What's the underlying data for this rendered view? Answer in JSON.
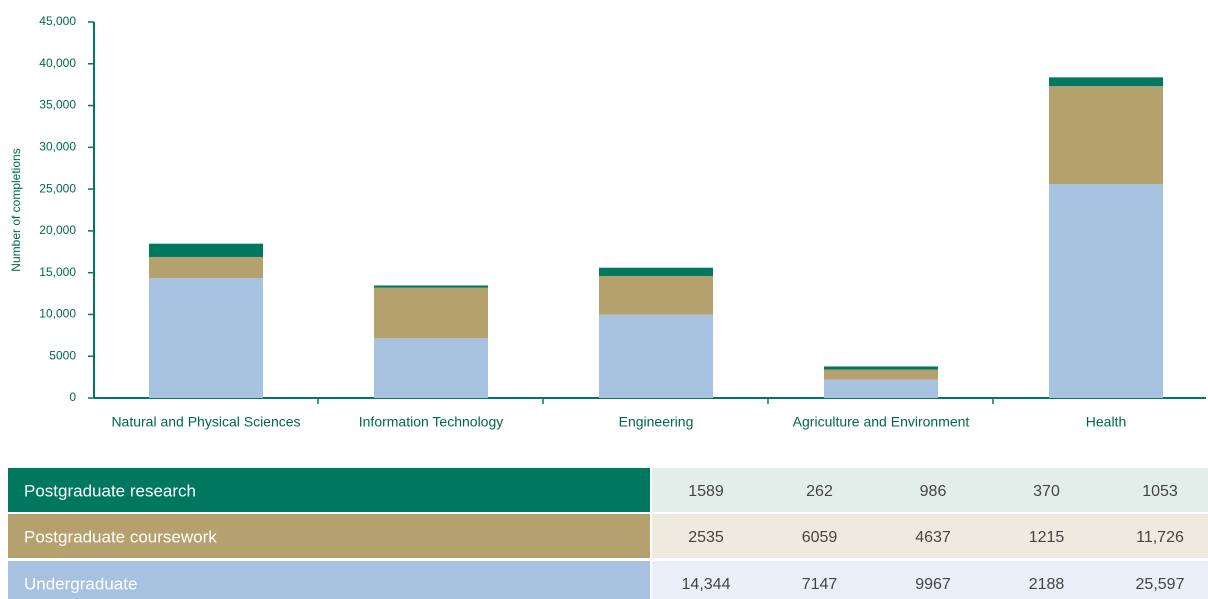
{
  "chart_data": {
    "type": "stacked-bar",
    "y_label": "Number of completions",
    "categories": [
      "Natural and Physical Sciences",
      "Information Technology",
      "Engineering",
      "Agriculture and Environment",
      "Health"
    ],
    "series": [
      {
        "name": "Undergraduate",
        "color": "#a7c1e1",
        "values": [
          14344,
          7147,
          9967,
          2188,
          25597
        ],
        "value_labels": [
          "14,344",
          "7147",
          "9967",
          "2188",
          "25,597"
        ]
      },
      {
        "name": "Postgraduate coursework",
        "color": "#b5a16d",
        "values": [
          2535,
          6059,
          4637,
          1215,
          11726
        ],
        "value_labels": [
          "2535",
          "6059",
          "4637",
          "1215",
          "11,726"
        ]
      },
      {
        "name": "Postgraduate research",
        "color": "#00785f",
        "values": [
          1589,
          262,
          986,
          370,
          1053
        ],
        "value_labels": [
          "1589",
          "262",
          "986",
          "370",
          "1053"
        ]
      }
    ],
    "ylim": [
      0,
      45000
    ],
    "yticks": [
      0,
      5000,
      {
        "value": 10000,
        "label": "10,000"
      },
      {
        "value": 15000,
        "label": "15,000"
      },
      {
        "value": 20000,
        "label": "20,000"
      },
      {
        "value": 25000,
        "label": "25,000"
      },
      {
        "value": 30000,
        "label": "30,000"
      },
      {
        "value": 35000,
        "label": "35,000"
      },
      {
        "value": 40000,
        "label": "40,000"
      },
      {
        "value": 45000,
        "label": "45,000"
      }
    ]
  }
}
